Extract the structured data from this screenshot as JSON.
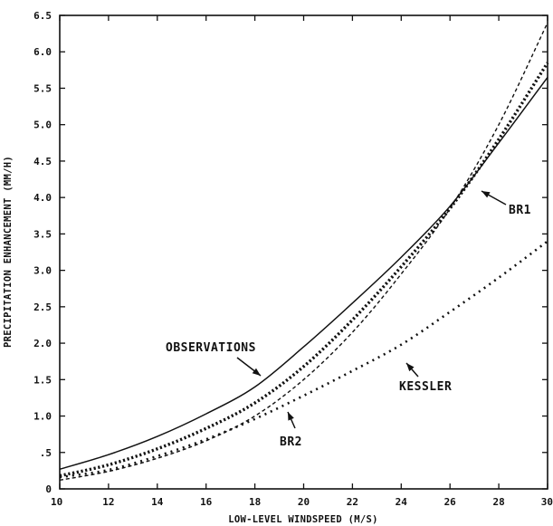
{
  "chart_data": {
    "type": "line",
    "title": "",
    "xlabel": "LOW-LEVEL WINDSPEED (M/S)",
    "ylabel": "PRECIPITATION ENHANCEMENT (MM/H)",
    "xlim": [
      10,
      30
    ],
    "ylim": [
      0,
      6.5
    ],
    "grid": false,
    "legend": "none",
    "x_ticks": [
      10,
      12,
      14,
      16,
      18,
      20,
      22,
      24,
      26,
      28,
      30
    ],
    "x_tick_labels": [
      "10",
      "12",
      "14",
      "16",
      "18",
      "20",
      "22",
      "24",
      "26",
      "28",
      "30"
    ],
    "y_ticks": [
      0,
      0.5,
      1.0,
      1.5,
      2.0,
      2.5,
      3.0,
      3.5,
      4.0,
      4.5,
      5.0,
      5.5,
      6.0,
      6.5
    ],
    "y_tick_labels": [
      "0",
      ".5",
      "1.0",
      "1.5",
      "2.0",
      "2.5",
      "3.0",
      "3.5",
      "4.0",
      "4.5",
      "5.0",
      "5.5",
      "6.0",
      "6.5"
    ],
    "x": [
      10,
      12,
      14,
      16,
      18,
      20,
      22,
      24,
      26,
      28,
      30
    ],
    "series": [
      {
        "name": "OBSERVATIONS",
        "style": "solid",
        "values": [
          0.27,
          0.47,
          0.72,
          1.03,
          1.4,
          1.95,
          2.55,
          3.18,
          3.88,
          4.75,
          5.65
        ]
      },
      {
        "name": "BR1",
        "style": "dense-dotted",
        "values": [
          0.18,
          0.33,
          0.55,
          0.83,
          1.18,
          1.68,
          2.32,
          3.05,
          3.85,
          4.8,
          5.85
        ]
      },
      {
        "name": "BR2",
        "style": "dashed",
        "values": [
          0.12,
          0.24,
          0.42,
          0.66,
          1.0,
          1.5,
          2.15,
          2.95,
          3.85,
          5.0,
          6.4
        ]
      },
      {
        "name": "KESSLER",
        "style": "sparse-dotted",
        "values": [
          0.16,
          0.26,
          0.45,
          0.68,
          0.96,
          1.28,
          1.62,
          1.98,
          2.43,
          2.9,
          3.4
        ]
      }
    ],
    "annotations": [
      {
        "text": "OBSERVATIONS",
        "series": "OBSERVATIONS"
      },
      {
        "text": "BR1",
        "series": "BR1"
      },
      {
        "text": "BR2",
        "series": "BR2"
      },
      {
        "text": "KESSLER",
        "series": "KESSLER"
      }
    ],
    "colors": {
      "ink": "#111111",
      "background": "#ffffff"
    }
  }
}
